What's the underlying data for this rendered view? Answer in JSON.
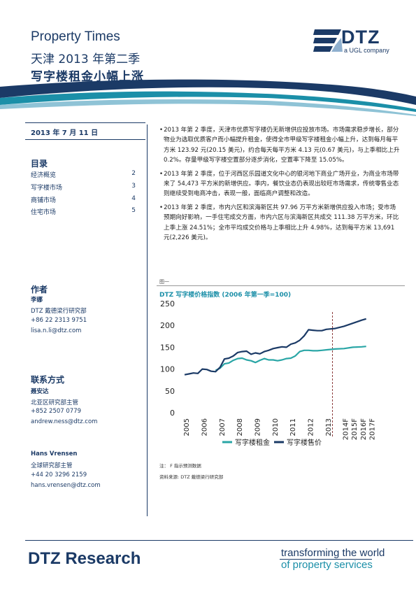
{
  "header": {
    "series": "Property Times",
    "subtitle": "天津 2013 年第二季",
    "headline": "写字楼租金小幅上涨",
    "logo_text": "DTZ",
    "logo_tagline": "a UGL company"
  },
  "sidebar": {
    "date": "2013 年 7 月 11 日",
    "toc_heading": "目录",
    "toc": [
      {
        "label": "经济概览",
        "page": "2"
      },
      {
        "label": "写字楼市场",
        "page": "3"
      },
      {
        "label": "商铺市场",
        "page": "4"
      },
      {
        "label": "住宅市场",
        "page": "5"
      }
    ],
    "author_heading": "作者",
    "author": {
      "name": "李娜",
      "dept": "DTZ 戴德梁行研究部",
      "phone": "+86 22 2313 9751",
      "email": "lisa.n.li@dtz.com"
    },
    "contact_heading": "联系方式",
    "contacts": [
      {
        "name": "聂安达",
        "title": "北亚区研究部主管",
        "phone": "+852 2507 0779",
        "email": "andrew.ness@dtz.com"
      },
      {
        "name": "Hans Vrensen",
        "title": "全球研究部主管",
        "phone": "+44 20 3296 2159",
        "email": "hans.vrensen@dtz.com"
      }
    ]
  },
  "bullets": [
    "2013 年第 2 季度，天津市优质写字楼仍无新增供应投放市场。市场需求稳步增长，部分物业为选取优质客户而小幅提升租金，使得全市甲级写字楼租金小幅上升，达到每月每平方米 123.92 元(20.15 美元)，约合每天每平方米 4.13 元(0.67 美元)，与上季相比上升 0.2%。存量甲级写字楼空置部分逐步消化，空置率下降至 15.05%。",
    "2013 年第 2 季度，位于河西区乐园道文化中心的银河地下商业广场开业，为商业市场带来了 54,473 平方米的新增供应。季内，餐饮业态仍表现出较旺市场需求，传统零售业态则继续受到电商冲击，表现一般，面临商户调整和改造。",
    "2013 年第 2 季度，市内六区和滨海新区共 97.96 万平方米新增供应投入市场；受市场预期向好影响，一手住宅成交方面，市内六区与滨海新区共成交 111.38 万平方米，环比上季上涨 24.51%；全市平均成交价格与上季相比上升 4.98%，达到每平方米 13,691 元(2,226 美元)。"
  ],
  "figure": {
    "label": "图一",
    "title": "DTZ 写字楼价格指数 (2006 年第一季=100)",
    "note": "注：  F 指示预测数据",
    "source": "资料来源: DTZ 戴德梁行研究部"
  },
  "chart_data": {
    "type": "line",
    "title": "DTZ 写字楼价格指数 (2006 年第一季=100)",
    "x_tick_labels": [
      "2005",
      "2006",
      "2007",
      "2008",
      "2009",
      "2010",
      "2011",
      "2012",
      "2013",
      "2014F",
      "2015F",
      "2016F",
      "2017F"
    ],
    "ylim": [
      0,
      250
    ],
    "y_ticks": [
      0,
      50,
      100,
      150,
      200,
      250
    ],
    "forecast_marker": "2013 Q2",
    "x_range": [
      2005.0,
      2016.25
    ],
    "series": [
      {
        "name": "写字楼租金",
        "color": "#2aa6a6",
        "points": [
          [
            2006.75,
            97
          ],
          [
            2007.0,
            102
          ],
          [
            2007.25,
            112
          ],
          [
            2007.5,
            114
          ],
          [
            2007.75,
            120
          ],
          [
            2008.0,
            124
          ],
          [
            2008.25,
            125
          ],
          [
            2008.5,
            121
          ],
          [
            2008.75,
            119
          ],
          [
            2009.0,
            115
          ],
          [
            2009.25,
            120
          ],
          [
            2009.5,
            124
          ],
          [
            2009.75,
            121
          ],
          [
            2010.0,
            121
          ],
          [
            2010.25,
            119
          ],
          [
            2010.5,
            121
          ],
          [
            2010.75,
            124
          ],
          [
            2011.0,
            125
          ],
          [
            2011.25,
            130
          ],
          [
            2011.5,
            140
          ],
          [
            2011.75,
            143
          ],
          [
            2012.0,
            143
          ],
          [
            2012.25,
            142
          ],
          [
            2012.5,
            142
          ],
          [
            2012.75,
            143
          ],
          [
            2013.0,
            144
          ],
          [
            2013.25,
            145
          ],
          [
            2013.5,
            146
          ],
          [
            2014.0,
            147
          ],
          [
            2014.5,
            150
          ],
          [
            2015.0,
            151
          ],
          [
            2015.25,
            152
          ]
        ]
      },
      {
        "name": "写字楼售价",
        "color": "#1b3a66",
        "points": [
          [
            2005.0,
            87
          ],
          [
            2005.25,
            89
          ],
          [
            2005.5,
            91
          ],
          [
            2005.75,
            90
          ],
          [
            2006.0,
            100
          ],
          [
            2006.25,
            99
          ],
          [
            2006.5,
            95
          ],
          [
            2006.75,
            94
          ],
          [
            2007.0,
            104
          ],
          [
            2007.25,
            123
          ],
          [
            2007.5,
            125
          ],
          [
            2007.75,
            130
          ],
          [
            2008.0,
            138
          ],
          [
            2008.25,
            140
          ],
          [
            2008.5,
            141
          ],
          [
            2008.75,
            134
          ],
          [
            2009.0,
            137
          ],
          [
            2009.25,
            135
          ],
          [
            2009.5,
            140
          ],
          [
            2009.75,
            143
          ],
          [
            2010.0,
            147
          ],
          [
            2010.25,
            149
          ],
          [
            2010.5,
            151
          ],
          [
            2010.75,
            150
          ],
          [
            2011.0,
            157
          ],
          [
            2011.25,
            160
          ],
          [
            2011.5,
            166
          ],
          [
            2011.75,
            176
          ],
          [
            2012.0,
            190
          ],
          [
            2012.25,
            189
          ],
          [
            2012.5,
            188
          ],
          [
            2012.75,
            188
          ],
          [
            2013.0,
            191
          ],
          [
            2013.25,
            192
          ],
          [
            2013.5,
            193
          ],
          [
            2014.0,
            198
          ],
          [
            2014.5,
            205
          ],
          [
            2015.0,
            212
          ],
          [
            2015.25,
            215
          ]
        ]
      }
    ],
    "legend_position": "bottom"
  },
  "footer": {
    "brand": "DTZ Research",
    "tagline_1": "transforming the world",
    "tagline_2": "of property services"
  }
}
